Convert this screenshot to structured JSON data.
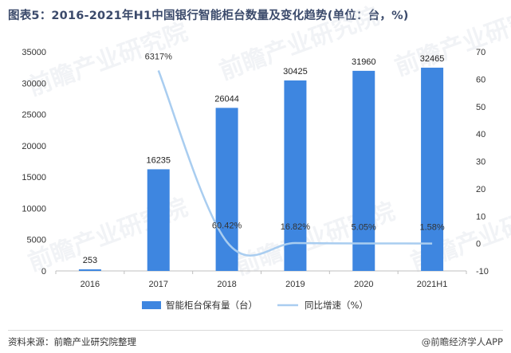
{
  "title": "图表5：2016-2021年H1中国银行智能柜台数量及变化趋势(单位：台，%)",
  "footer": {
    "source": "资料来源：前瞻产业研究院整理",
    "brand": "@前瞻经济学人APP"
  },
  "watermark_text": "前瞻产业研究院",
  "chart_data": {
    "type": "bar",
    "categories": [
      "2016",
      "2017",
      "2018",
      "2019",
      "2020",
      "2021H1"
    ],
    "series": [
      {
        "name": "智能柜台保有量（台）",
        "type": "bar",
        "axis": "left",
        "values": [
          253,
          16235,
          26044,
          30425,
          31960,
          32465
        ],
        "labels": [
          "253",
          "16235",
          "26044",
          "30425",
          "31960",
          "32465"
        ],
        "color": "#3e86e0"
      },
      {
        "name": "同比增速（%）",
        "type": "line",
        "axis": "right",
        "values": [
          null,
          63.17,
          0.6042,
          0.1682,
          0.0505,
          0.0158
        ],
        "labels": [
          "",
          "6317%",
          "60.42%",
          "16.82%",
          "5.05%",
          "1.58%"
        ],
        "color": "#a9cdf0"
      }
    ],
    "y_left": {
      "min": 0,
      "max": 35000,
      "ticks": [
        0,
        5000,
        10000,
        15000,
        20000,
        25000,
        30000,
        35000
      ]
    },
    "y_right": {
      "min": -10,
      "max": 70,
      "ticks": [
        -10,
        0,
        10,
        20,
        30,
        40,
        50,
        60,
        70
      ]
    },
    "grid": false,
    "legend": "bottom"
  }
}
